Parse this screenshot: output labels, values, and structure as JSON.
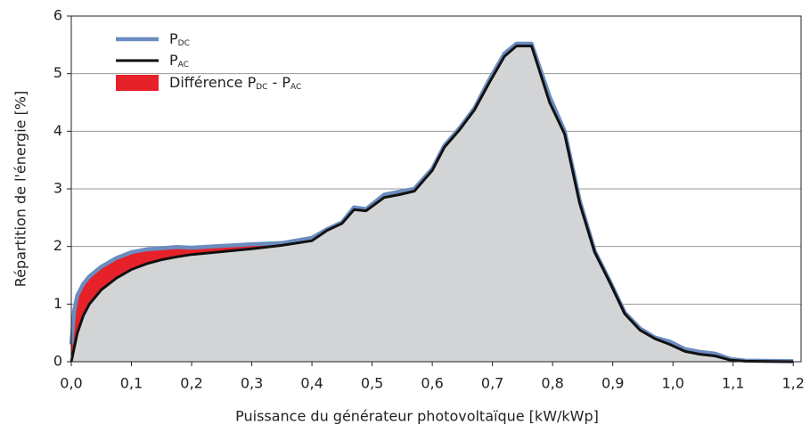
{
  "chart_data": {
    "type": "line",
    "ylabel": "Répartition de l'énergie [%]",
    "xlabel": "Puissance du générateur photovoltaïque [kW/kWp]",
    "x": [
      0,
      0.005,
      0.01,
      0.02,
      0.03,
      0.05,
      0.075,
      0.1,
      0.125,
      0.15,
      0.175,
      0.2,
      0.25,
      0.3,
      0.35,
      0.4,
      0.425,
      0.45,
      0.47,
      0.49,
      0.52,
      0.545,
      0.57,
      0.6,
      0.62,
      0.645,
      0.67,
      0.695,
      0.72,
      0.74,
      0.765,
      0.795,
      0.82,
      0.845,
      0.87,
      0.895,
      0.92,
      0.945,
      0.97,
      0.995,
      1.02,
      1.045,
      1.07,
      1.095,
      1.12,
      1.2
    ],
    "series": [
      {
        "label_parts": [
          {
            "text": "P"
          },
          {
            "text": "DC",
            "sub": true
          }
        ],
        "color": "#6b8cc0",
        "values": [
          0.3,
          0.9,
          1.15,
          1.35,
          1.48,
          1.65,
          1.8,
          1.9,
          1.95,
          1.97,
          1.99,
          1.98,
          2.01,
          2.04,
          2.06,
          2.15,
          2.3,
          2.42,
          2.68,
          2.65,
          2.9,
          2.95,
          3.0,
          3.35,
          3.75,
          4.05,
          4.4,
          4.9,
          5.35,
          5.52,
          5.52,
          4.6,
          4.0,
          2.8,
          1.92,
          1.4,
          0.85,
          0.58,
          0.42,
          0.35,
          0.22,
          0.17,
          0.14,
          0.05,
          0.02,
          0.01
        ]
      },
      {
        "label_parts": [
          {
            "text": "P"
          },
          {
            "text": "AC",
            "sub": true
          }
        ],
        "color": "#111111",
        "values": [
          0,
          0.25,
          0.5,
          0.8,
          1.0,
          1.25,
          1.45,
          1.6,
          1.7,
          1.77,
          1.82,
          1.86,
          1.91,
          1.96,
          2.02,
          2.1,
          2.28,
          2.4,
          2.64,
          2.62,
          2.85,
          2.9,
          2.96,
          3.32,
          3.72,
          4.02,
          4.37,
          4.85,
          5.3,
          5.48,
          5.48,
          4.5,
          3.95,
          2.75,
          1.9,
          1.38,
          0.83,
          0.55,
          0.4,
          0.3,
          0.18,
          0.13,
          0.1,
          0.03,
          0.01,
          0
        ]
      }
    ],
    "difference": {
      "label_parts": [
        {
          "text": "Différence P"
        },
        {
          "text": "DC",
          "sub": true
        },
        {
          "text": " - P"
        },
        {
          "text": "AC",
          "sub": true
        }
      ],
      "color": "#e62129"
    },
    "area_color": "#d3d4d5",
    "xlim": [
      0,
      1.213
    ],
    "ylim": [
      0,
      6
    ],
    "xticks": [
      {
        "value": 0,
        "label": "0,0"
      },
      {
        "value": 0.1,
        "label": "0,1"
      },
      {
        "value": 0.2,
        "label": "0,2"
      },
      {
        "value": 0.3,
        "label": "0,3"
      },
      {
        "value": 0.4,
        "label": "0,4"
      },
      {
        "value": 0.5,
        "label": "0,5"
      },
      {
        "value": 0.6,
        "label": "0,6"
      },
      {
        "value": 0.7,
        "label": "0,7"
      },
      {
        "value": 0.8,
        "label": "0,8"
      },
      {
        "value": 0.9,
        "label": "0,9"
      },
      {
        "value": 1.0,
        "label": "1,0"
      },
      {
        "value": 1.1,
        "label": "1,1"
      },
      {
        "value": 1.2,
        "label": "1,2"
      }
    ],
    "yticks": [
      0,
      1,
      2,
      3,
      4,
      5,
      6
    ],
    "grid": true
  }
}
